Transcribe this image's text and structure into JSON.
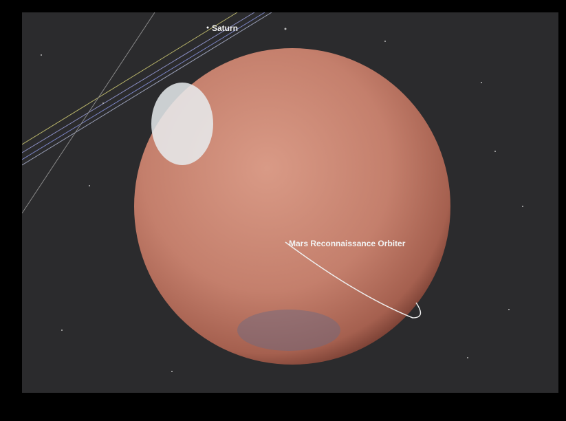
{
  "labels": {
    "planet": "Saturn",
    "spacecraft": "Mars Reconnaissance Orbiter"
  }
}
